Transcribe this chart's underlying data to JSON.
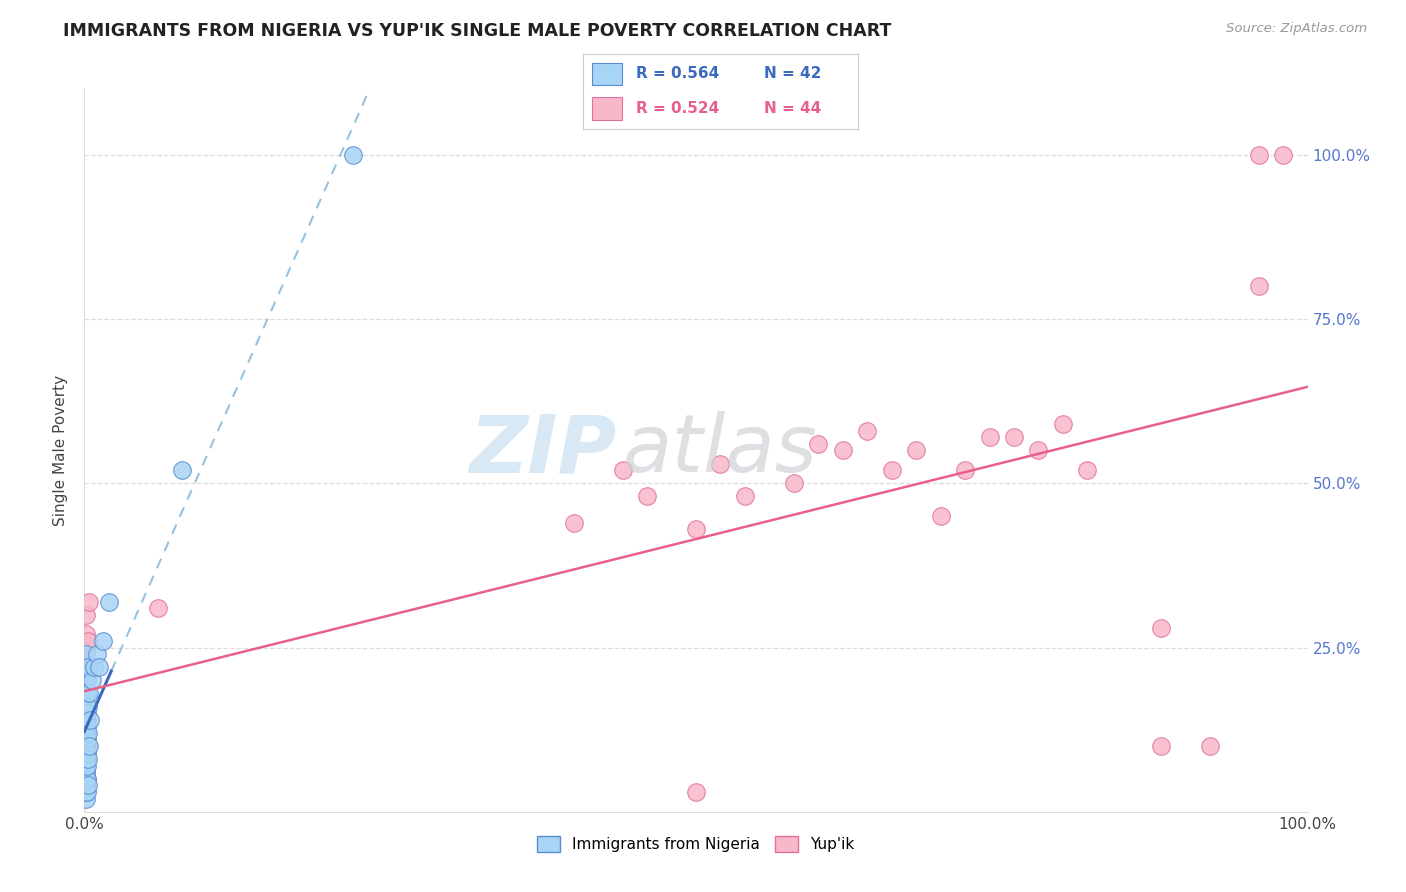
{
  "title": "IMMIGRANTS FROM NIGERIA VS YUP'IK SINGLE MALE POVERTY CORRELATION CHART",
  "source": "Source: ZipAtlas.com",
  "ylabel": "Single Male Poverty",
  "legend_blue_r": "R = 0.564",
  "legend_blue_n": "N = 42",
  "legend_pink_r": "R = 0.524",
  "legend_pink_n": "N = 44",
  "blue_scatter": [
    [
      0.001,
      0.02
    ],
    [
      0.001,
      0.03
    ],
    [
      0.001,
      0.04
    ],
    [
      0.001,
      0.05
    ],
    [
      0.001,
      0.06
    ],
    [
      0.001,
      0.07
    ],
    [
      0.001,
      0.08
    ],
    [
      0.001,
      0.09
    ],
    [
      0.001,
      0.1
    ],
    [
      0.001,
      0.11
    ],
    [
      0.001,
      0.12
    ],
    [
      0.001,
      0.14
    ],
    [
      0.001,
      0.16
    ],
    [
      0.001,
      0.18
    ],
    [
      0.001,
      0.2
    ],
    [
      0.001,
      0.22
    ],
    [
      0.001,
      0.24
    ],
    [
      0.002,
      0.03
    ],
    [
      0.002,
      0.05
    ],
    [
      0.002,
      0.07
    ],
    [
      0.002,
      0.09
    ],
    [
      0.002,
      0.11
    ],
    [
      0.002,
      0.13
    ],
    [
      0.002,
      0.15
    ],
    [
      0.002,
      0.18
    ],
    [
      0.002,
      0.2
    ],
    [
      0.003,
      0.04
    ],
    [
      0.003,
      0.08
    ],
    [
      0.003,
      0.12
    ],
    [
      0.003,
      0.16
    ],
    [
      0.003,
      0.22
    ],
    [
      0.004,
      0.1
    ],
    [
      0.004,
      0.18
    ],
    [
      0.005,
      0.14
    ],
    [
      0.006,
      0.2
    ],
    [
      0.008,
      0.22
    ],
    [
      0.01,
      0.24
    ],
    [
      0.012,
      0.22
    ],
    [
      0.015,
      0.26
    ],
    [
      0.02,
      0.32
    ],
    [
      0.08,
      0.52
    ],
    [
      0.22,
      1.0
    ]
  ],
  "pink_scatter": [
    [
      0.001,
      0.04
    ],
    [
      0.001,
      0.06
    ],
    [
      0.001,
      0.1
    ],
    [
      0.001,
      0.14
    ],
    [
      0.001,
      0.2
    ],
    [
      0.001,
      0.23
    ],
    [
      0.001,
      0.25
    ],
    [
      0.001,
      0.27
    ],
    [
      0.001,
      0.3
    ],
    [
      0.002,
      0.05
    ],
    [
      0.002,
      0.08
    ],
    [
      0.002,
      0.14
    ],
    [
      0.002,
      0.18
    ],
    [
      0.002,
      0.22
    ],
    [
      0.003,
      0.1
    ],
    [
      0.003,
      0.26
    ],
    [
      0.004,
      0.32
    ],
    [
      0.06,
      0.31
    ],
    [
      0.4,
      0.44
    ],
    [
      0.44,
      0.52
    ],
    [
      0.46,
      0.48
    ],
    [
      0.5,
      0.43
    ],
    [
      0.52,
      0.53
    ],
    [
      0.54,
      0.48
    ],
    [
      0.58,
      0.5
    ],
    [
      0.6,
      0.56
    ],
    [
      0.62,
      0.55
    ],
    [
      0.64,
      0.58
    ],
    [
      0.66,
      0.52
    ],
    [
      0.68,
      0.55
    ],
    [
      0.7,
      0.45
    ],
    [
      0.72,
      0.52
    ],
    [
      0.74,
      0.57
    ],
    [
      0.76,
      0.57
    ],
    [
      0.78,
      0.55
    ],
    [
      0.8,
      0.59
    ],
    [
      0.82,
      0.52
    ],
    [
      0.88,
      0.28
    ],
    [
      0.88,
      0.1
    ],
    [
      0.92,
      0.1
    ],
    [
      0.5,
      0.03
    ],
    [
      0.96,
      1.0
    ],
    [
      0.98,
      1.0
    ],
    [
      0.96,
      0.8
    ]
  ],
  "blue_color": "#a8d4f5",
  "pink_color": "#f7b8c8",
  "blue_line_color": "#3a6abf",
  "pink_line_color": "#e8608a",
  "blue_dot_edge": "#5a8ad0",
  "pink_dot_edge": "#e070a0",
  "watermark_zip_color": "#c8dff0",
  "watermark_atlas_color": "#d0d0d8",
  "background_color": "#FFFFFF",
  "grid_color": "#dddddd",
  "right_tick_color": "#5577cc",
  "xlim": [
    0.0,
    1.0
  ],
  "ylim": [
    0.0,
    1.1
  ]
}
